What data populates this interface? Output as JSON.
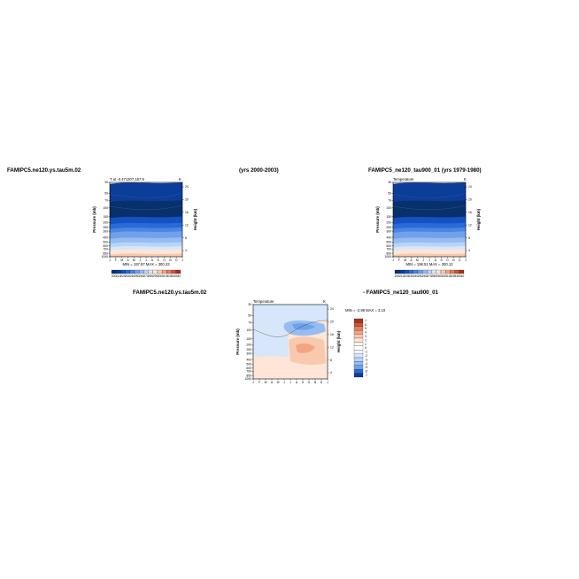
{
  "page": {
    "left_case": "FAMIPC5.ne120.ys.tau5m.02",
    "period": "(yrs 2000-2003)",
    "right_case": "FAMIPC5_ne120_tau900_01 (yrs 1979-1980)",
    "diff_left": "FAMIPC5.ne120.ys.tau5m.02",
    "diff_right": "- FAMIPC5_ne120_tau900_01"
  },
  "colors": {
    "blues": [
      "#08306b",
      "#0b3d9a",
      "#1451c2",
      "#2a6ad6",
      "#4a86e2",
      "#6fa2ea",
      "#95bdf1",
      "#b9d4f7",
      "#d7e6fb"
    ],
    "reds": [
      "#fde6d8",
      "#f9c9ae",
      "#f2a483",
      "#e47e5d",
      "#cc5536",
      "#a8321c"
    ]
  },
  "chart_data": [
    {
      "type": "heatmap",
      "name_id": "left",
      "title_left": "T at -0.471307,167.9",
      "title_right": "K",
      "xlabel": "",
      "ylabel": "Pressure (mb)",
      "y2label": "Height (km)",
      "x_ticks": [
        "J",
        "F",
        "M",
        "A",
        "M",
        "J",
        "J",
        "A",
        "S",
        "O",
        "N",
        "D",
        "J"
      ],
      "y_ticks": [
        "30",
        "50",
        "70",
        "100",
        "150",
        "200",
        "250",
        "300",
        "400",
        "500",
        "600",
        "700",
        "850",
        "1000"
      ],
      "y2_ticks": [
        "24",
        "20",
        "16",
        "12",
        "8",
        "4"
      ],
      "stats": "MIN = 197.87  MAX = 300.43",
      "colorbar_labels": [
        "200",
        "210",
        "220",
        "230",
        "240",
        "250",
        "260",
        "270",
        "280",
        "290",
        "300",
        "310",
        "320",
        "330",
        "340"
      ],
      "bands": [
        {
          "p_top": 30,
          "p_bottom": 70,
          "level": 1
        },
        {
          "p_top": 70,
          "p_bottom": 150,
          "level": 0
        },
        {
          "p_top": 150,
          "p_bottom": 200,
          "level": 2
        },
        {
          "p_top": 200,
          "p_bottom": 250,
          "level": 3
        },
        {
          "p_top": 250,
          "p_bottom": 300,
          "level": 4
        },
        {
          "p_top": 300,
          "p_bottom": 400,
          "level": 5
        },
        {
          "p_top": 400,
          "p_bottom": 500,
          "level": 6
        },
        {
          "p_top": 500,
          "p_bottom": 600,
          "level": 7
        },
        {
          "p_top": 600,
          "p_bottom": 700,
          "level": 8
        },
        {
          "p_top": 700,
          "p_bottom": 850,
          "level": 9
        },
        {
          "p_top": 850,
          "p_bottom": 1000,
          "level": 10
        }
      ]
    },
    {
      "type": "heatmap",
      "name_id": "right",
      "title_left": "Temperature",
      "title_right": "K",
      "xlabel": "",
      "ylabel": "Pressure (mb)",
      "y2label": "Height (km)",
      "x_ticks": [
        "J",
        "F",
        "M",
        "A",
        "M",
        "J",
        "J",
        "A",
        "S",
        "O",
        "N",
        "D",
        "J"
      ],
      "y_ticks": [
        "30",
        "50",
        "70",
        "100",
        "150",
        "200",
        "250",
        "300",
        "400",
        "500",
        "600",
        "700",
        "850",
        "1000"
      ],
      "y2_ticks": [
        "24",
        "20",
        "16",
        "12",
        "8",
        "4"
      ],
      "stats": "MIN = 198.51  MAX = 300.12",
      "colorbar_labels": [
        "200",
        "210",
        "220",
        "230",
        "240",
        "250",
        "260",
        "270",
        "280",
        "290",
        "300",
        "310",
        "320",
        "330",
        "340"
      ],
      "bands": [
        {
          "p_top": 30,
          "p_bottom": 70,
          "level": 1
        },
        {
          "p_top": 70,
          "p_bottom": 150,
          "level": 0
        },
        {
          "p_top": 150,
          "p_bottom": 200,
          "level": 2
        },
        {
          "p_top": 200,
          "p_bottom": 250,
          "level": 3
        },
        {
          "p_top": 250,
          "p_bottom": 300,
          "level": 4
        },
        {
          "p_top": 300,
          "p_bottom": 400,
          "level": 5
        },
        {
          "p_top": 400,
          "p_bottom": 500,
          "level": 6
        },
        {
          "p_top": 500,
          "p_bottom": 600,
          "level": 7
        },
        {
          "p_top": 600,
          "p_bottom": 700,
          "level": 8
        },
        {
          "p_top": 700,
          "p_bottom": 850,
          "level": 9
        },
        {
          "p_top": 850,
          "p_bottom": 1000,
          "level": 10
        }
      ]
    },
    {
      "type": "heatmap",
      "name_id": "diff",
      "title_left": "Temperature",
      "title_right": "K",
      "xlabel": "",
      "ylabel": "Pressure (mb)",
      "y2label": "Height (km)",
      "x_ticks": [
        "J",
        "F",
        "M",
        "A",
        "M",
        "J",
        "J",
        "A",
        "S",
        "O",
        "N",
        "D",
        "J"
      ],
      "y_ticks": [
        "30",
        "50",
        "70",
        "100",
        "150",
        "200",
        "250",
        "300",
        "400",
        "500",
        "600",
        "700",
        "850",
        "1000"
      ],
      "y2_ticks": [
        "24",
        "20",
        "16",
        "12",
        "8",
        "4"
      ],
      "stats": "MIN = -2.99  MAX = 3.10",
      "colorbar_labels": [
        "7",
        "6",
        "5",
        "4",
        "3",
        "2",
        "1",
        "0",
        "-1",
        "-2",
        "-3",
        "-4",
        "-5",
        "-6",
        "-7"
      ]
    }
  ]
}
